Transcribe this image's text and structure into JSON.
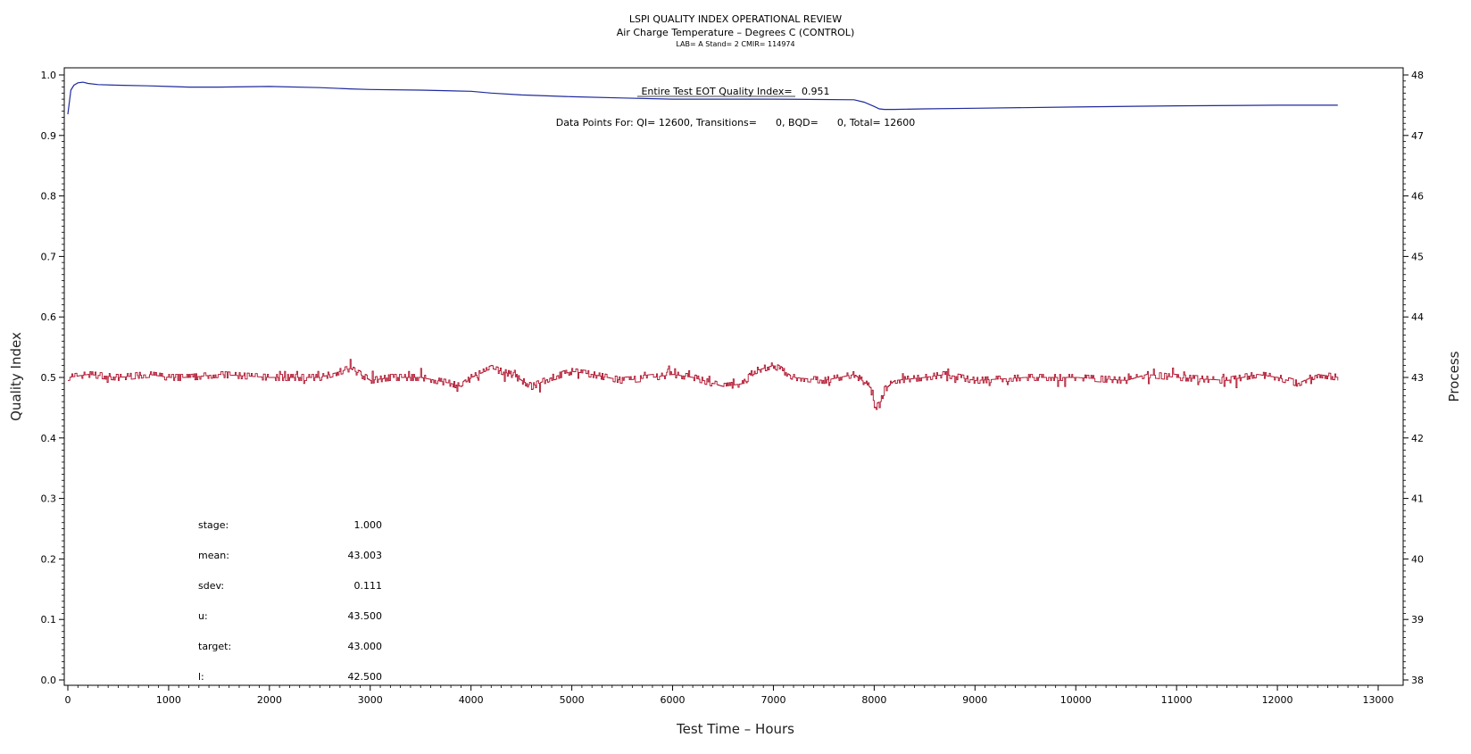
{
  "header": {
    "title": "LSPI QUALITY INDEX OPERATIONAL REVIEW",
    "subtitle": "Air Charge Temperature – Degrees C (CONTROL)",
    "info": "LAB= A Stand= 2 CMIR= 114974"
  },
  "annotations": {
    "qi_text": "Entire Test EOT Quality Index=   0.951",
    "points_text": "Data Points For: QI= 12600, Transitions=      0, BQD=      0, Total= 12600"
  },
  "stats": [
    {
      "label": "stage:",
      "value": "1.000"
    },
    {
      "label": "mean:",
      "value": "43.003"
    },
    {
      "label": "sdev:",
      "value": "0.111"
    },
    {
      "label": "u:",
      "value": "43.500"
    },
    {
      "label": "target:",
      "value": "43.000"
    },
    {
      "label": "l:",
      "value": "42.500"
    }
  ],
  "chart_data": {
    "type": "line",
    "xlabel": "Test Time – Hours",
    "ylabel_left": "Quality Index",
    "ylabel_right": "Process",
    "xlim": [
      0,
      13000
    ],
    "ylim_left": [
      0,
      1
    ],
    "ylim_right": [
      38,
      48
    ],
    "x_ticks": [
      "0",
      "1000",
      "2000",
      "3000",
      "4000",
      "5000",
      "6000",
      "7000",
      "8000",
      "9000",
      "10000",
      "11000",
      "12000",
      "13000"
    ],
    "y_left_ticks": [
      "0.0",
      "0.1",
      "0.2",
      "0.3",
      "0.4",
      "0.5",
      "0.6",
      "0.7",
      "0.8",
      "0.9",
      "1.0"
    ],
    "y_right_ticks": [
      "38",
      "39",
      "40",
      "41",
      "42",
      "43",
      "44",
      "45",
      "46",
      "47",
      "48"
    ],
    "grid": false,
    "series": [
      {
        "axis": "left",
        "color": "#1f2a9e",
        "x": [
          0,
          30,
          60,
          100,
          150,
          200,
          300,
          500,
          800,
          1000,
          1200,
          1500,
          2000,
          2500,
          2800,
          3000,
          3500,
          4000,
          4200,
          4500,
          5000,
          5500,
          6000,
          7000,
          7800,
          7900,
          8000,
          8050,
          8100,
          8200,
          8500,
          9000,
          10000,
          11000,
          12000,
          12600
        ],
        "values": [
          0.935,
          0.975,
          0.983,
          0.987,
          0.988,
          0.986,
          0.984,
          0.983,
          0.982,
          0.981,
          0.98,
          0.98,
          0.981,
          0.979,
          0.977,
          0.976,
          0.975,
          0.973,
          0.97,
          0.967,
          0.964,
          0.962,
          0.96,
          0.96,
          0.959,
          0.955,
          0.948,
          0.944,
          0.943,
          0.943,
          0.944,
          0.945,
          0.947,
          0.949,
          0.95,
          0.95
        ]
      },
      {
        "axis": "right",
        "color": "#b0102a",
        "x": [
          0,
          200,
          500,
          800,
          1000,
          1200,
          1500,
          2000,
          2500,
          2700,
          2800,
          2900,
          3000,
          3200,
          3500,
          3800,
          3900,
          4000,
          4200,
          4400,
          4600,
          4800,
          5000,
          5200,
          5500,
          5800,
          6000,
          6200,
          6500,
          6700,
          6800,
          7000,
          7200,
          7500,
          7800,
          7950,
          8000,
          8050,
          8100,
          8200,
          8500,
          8700,
          9000,
          9500,
          10000,
          10500,
          10700,
          11000,
          11500,
          11800,
          12000,
          12200,
          12400,
          12600
        ],
        "values": [
          43.0,
          43.05,
          43.0,
          43.05,
          43.0,
          43.0,
          43.05,
          43.0,
          43.0,
          43.1,
          43.15,
          43.05,
          42.95,
          43.0,
          43.0,
          42.9,
          42.85,
          43.0,
          43.15,
          43.05,
          42.85,
          43.0,
          43.1,
          43.05,
          42.95,
          43.0,
          43.05,
          43.0,
          42.85,
          42.9,
          43.1,
          43.2,
          43.0,
          42.95,
          43.05,
          42.85,
          42.5,
          42.55,
          42.8,
          42.95,
          43.0,
          43.05,
          42.95,
          43.0,
          43.0,
          42.95,
          43.05,
          43.0,
          42.95,
          43.05,
          43.0,
          42.9,
          43.05,
          43.0
        ]
      }
    ]
  }
}
